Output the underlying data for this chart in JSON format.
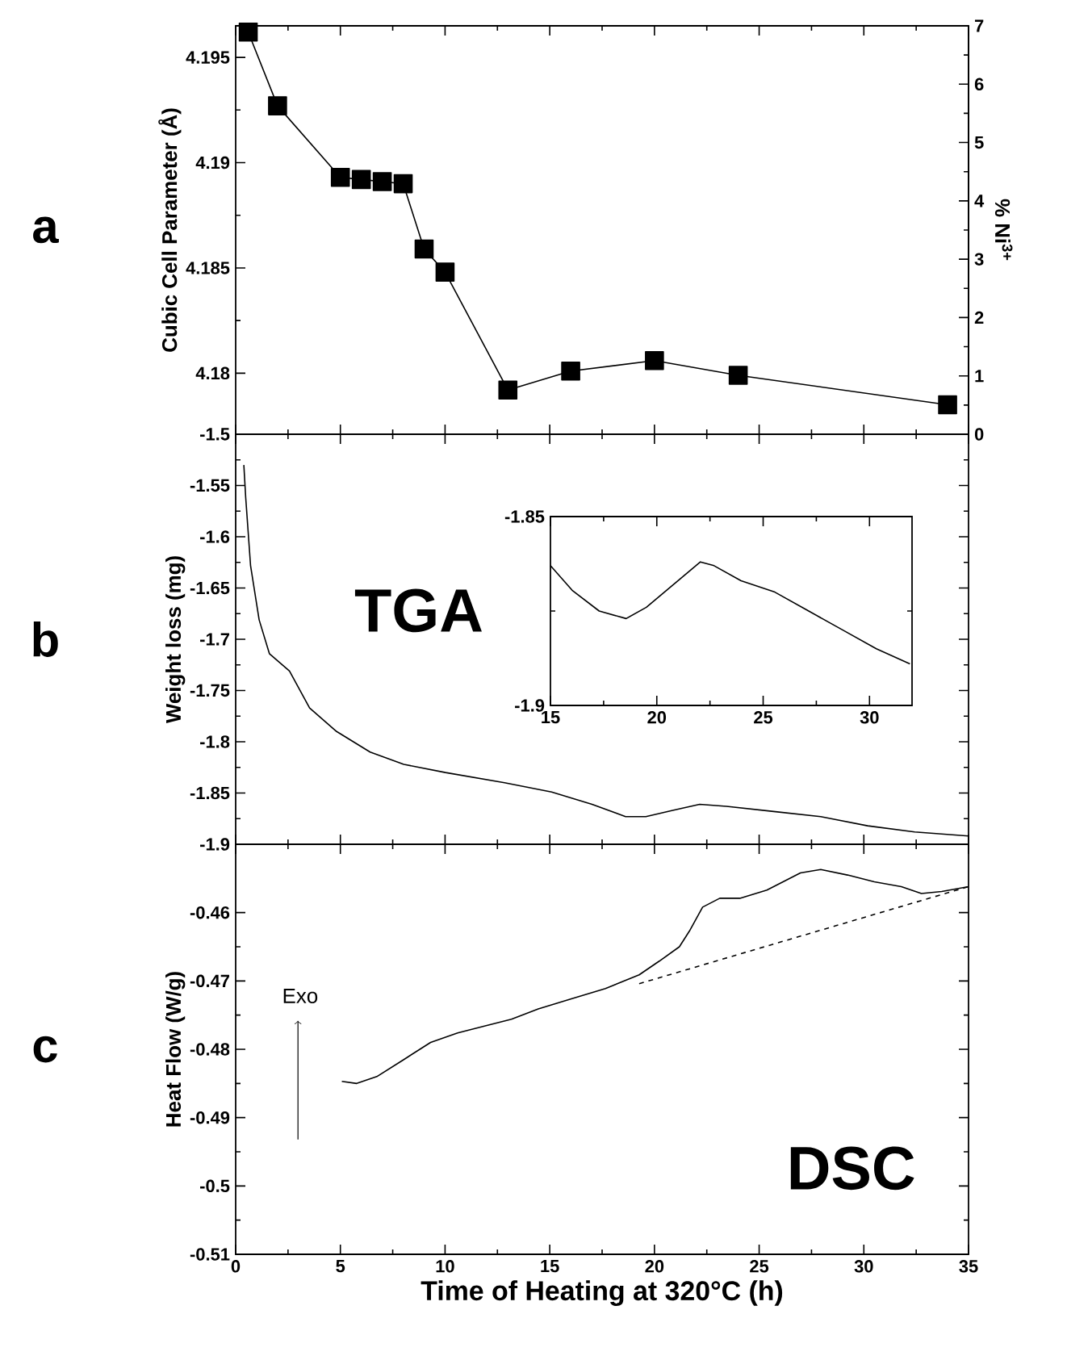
{
  "chart_data": [
    {
      "type": "line",
      "marker": "square",
      "tick_labels": "y",
      "ylabel": "Cubic Cell Parameter (Å)",
      "y2label": "% Ni$^{3+}$",
      "annotations": [
        "a"
      ],
      "xlim": [
        0,
        35
      ],
      "xticks": [
        0,
        5,
        10,
        15,
        20,
        25,
        30,
        35
      ],
      "ylim": [
        4.1771,
        4.1965
      ],
      "yticks": [
        4.18,
        4.185,
        4.19,
        4.195
      ],
      "y2lim": [
        0,
        7
      ],
      "y2ticks": [
        0,
        1,
        2,
        3,
        4,
        5,
        6,
        7
      ],
      "x": [
        0.6,
        2,
        5,
        6,
        7,
        8,
        9,
        10,
        13,
        16,
        20,
        24,
        34
      ],
      "series": [
        {
          "color": "#000000",
          "values": [
            4.1962,
            4.1927,
            4.1893,
            4.1892,
            4.1891,
            4.189,
            4.1859,
            4.1848,
            4.1792,
            4.1801,
            4.1806,
            4.1799,
            4.1785
          ]
        }
      ]
    },
    {
      "type": "line",
      "tick_labels": "y",
      "ylabel": "Weight loss (mg)",
      "annotations": [
        "b",
        "TGA"
      ],
      "xlim": [
        0,
        35
      ],
      "xticks": [
        0,
        5,
        10,
        15,
        20,
        25,
        30,
        35
      ],
      "ylim": [
        -1.9,
        -1.5
      ],
      "yticks": [
        -1.9,
        -1.85,
        -1.8,
        -1.75,
        -1.7,
        -1.65,
        -1.6,
        -1.55,
        -1.5
      ],
      "x": [
        0.39,
        0.48,
        0.71,
        1.12,
        1.61,
        2.57,
        3.53,
        4.82,
        6.42,
        8.03,
        10.02,
        12.84,
        15.09,
        17.02,
        18.62,
        19.59,
        20.87,
        22.16,
        23.44,
        25.69,
        27.94,
        30.18,
        32.43,
        35
      ],
      "series": [
        {
          "color": "#000000",
          "values": [
            -1.53,
            -1.562,
            -1.628,
            -1.681,
            -1.714,
            -1.731,
            -1.767,
            -1.79,
            -1.81,
            -1.822,
            -1.83,
            -1.84,
            -1.849,
            -1.861,
            -1.873,
            -1.873,
            -1.867,
            -1.861,
            -1.863,
            -1.868,
            -1.873,
            -1.882,
            -1.888,
            -1.892
          ]
        }
      ]
    },
    {
      "type": "line",
      "xlim": [
        15,
        32
      ],
      "xticks": [
        15,
        20,
        25,
        30
      ],
      "ylim": [
        -1.9,
        -1.85
      ],
      "yticks": [
        -1.9,
        -1.85
      ],
      "x": [
        15,
        16.02,
        17.29,
        18.56,
        19.51,
        20.78,
        22.05,
        22.69,
        23.96,
        25.55,
        27.14,
        28.73,
        30.32,
        31.9
      ],
      "series": [
        {
          "color": "#000000",
          "values": [
            -1.863,
            -1.8695,
            -1.875,
            -1.877,
            -1.874,
            -1.868,
            -1.862,
            -1.863,
            -1.867,
            -1.87,
            -1.875,
            -1.88,
            -1.885,
            -1.889
          ]
        }
      ]
    },
    {
      "type": "line",
      "xlabel": "Time of Heating at 320°C (h)",
      "ylabel": "Heat Flow (W/g)",
      "annotations": [
        "c",
        "DSC",
        "Exo"
      ],
      "xlim": [
        0,
        35
      ],
      "xticks": [
        0,
        5,
        10,
        15,
        20,
        25,
        30,
        35
      ],
      "ylim": [
        -0.51,
        -0.45
      ],
      "yticks": [
        -0.51,
        -0.5,
        -0.49,
        -0.48,
        -0.47,
        -0.46
      ],
      "x": [
        5.07,
        5.78,
        6.74,
        8.03,
        9.31,
        10.6,
        11.88,
        13.17,
        14.45,
        16.06,
        17.66,
        19.27,
        20.23,
        21.19,
        21.67,
        22.3,
        23.12,
        24.08,
        25.37,
        26.01,
        26.97,
        27.94,
        29.22,
        30.5,
        31.79,
        32.75,
        33.72,
        35
      ],
      "series": [
        {
          "color": "#000000",
          "values": [
            -0.4847,
            -0.485,
            -0.484,
            -0.4815,
            -0.479,
            -0.4776,
            -0.4766,
            -0.4756,
            -0.4741,
            -0.4726,
            -0.4711,
            -0.4691,
            -0.4671,
            -0.465,
            -0.4627,
            -0.4592,
            -0.4579,
            -0.4579,
            -0.4567,
            -0.4557,
            -0.4542,
            -0.4537,
            -0.4545,
            -0.4555,
            -0.4562,
            -0.4572,
            -0.4569,
            -0.4562
          ]
        },
        {
          "color": "#000000",
          "line_style": "dashed",
          "x": [
            19.27,
            35
          ],
          "values": [
            -0.4704,
            -0.4562
          ]
        }
      ]
    }
  ]
}
